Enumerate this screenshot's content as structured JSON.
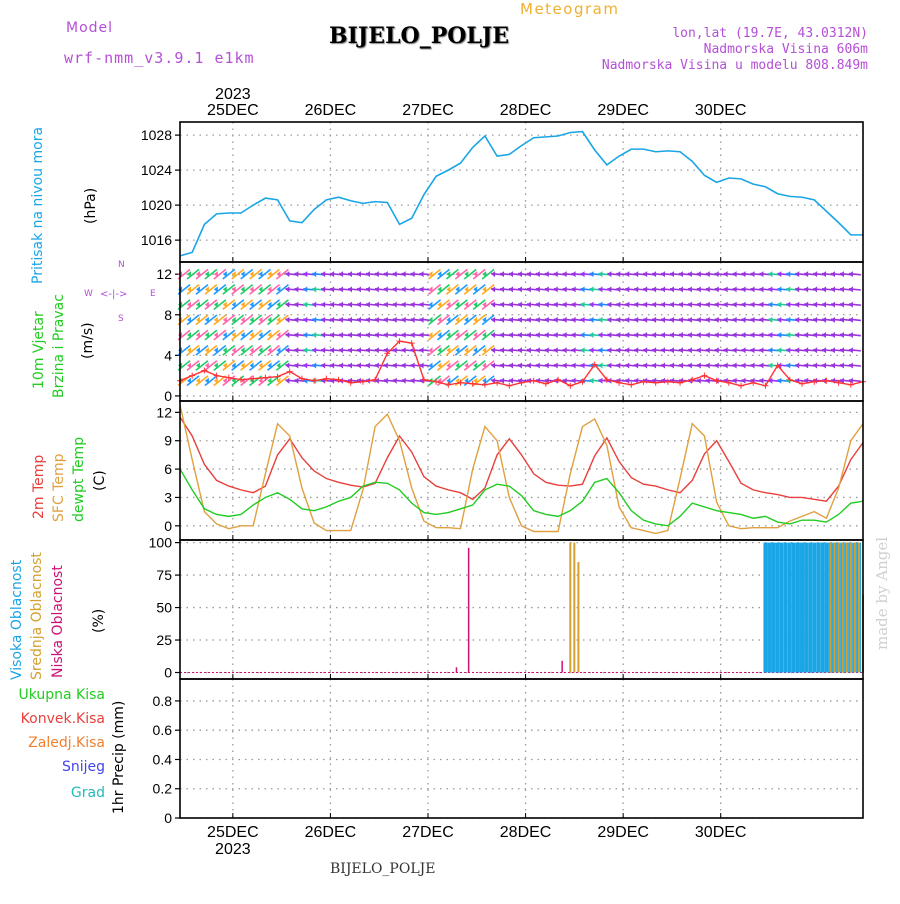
{
  "header": {
    "model_label": "Model",
    "model_name": "wrf-nmm_v3.9.1 e1km",
    "meteogram_label": "Meteogram",
    "station": "BIJELO_POLJE",
    "lonlat": "lon,lat (19.7E, 43.0312N)",
    "elevation": "Nadmorska Visina 606m",
    "model_elevation": "Nadmorska Visina u modelu 808.849m",
    "footer_station": "BIJELO_POLJE",
    "watermark": "made by Angel"
  },
  "colors": {
    "pressure": "#1aa6e6",
    "t2m": "#e8403c",
    "sfc": "#e0a040",
    "dewpt": "#22cc22",
    "wind_speed": "#ff3333",
    "high_cloud": "#1aa6e6",
    "mid_cloud": "#d4a030",
    "low_cloud": "#cc1177",
    "purple": "#b54fd6",
    "orange": "#f0b030"
  },
  "time_axis": {
    "top_year": "2023",
    "bottom_year": "2023",
    "day_labels": [
      "25DEC",
      "26DEC",
      "27DEC",
      "28DEC",
      "29DEC",
      "30DEC"
    ]
  },
  "panel_labels": {
    "pressure": [
      "Pritisak na nivou mora",
      "(hPa)"
    ],
    "wind": [
      "10m Vjetar",
      "Brzina i Pravac",
      "(m/s)"
    ],
    "compass": {
      "n": "N",
      "s": "S",
      "e": "E",
      "w": "W"
    },
    "temp": [
      "2m Temp",
      "SFC Temp",
      "dewpt Temp",
      "(C)"
    ],
    "cloud": [
      "Visoka Oblacnost",
      "Srednja Oblacnost",
      "Niska Oblacnost",
      "(%)"
    ],
    "precip_legend": [
      "Ukupna Kisa",
      "Konvek.Kisa",
      "Zaledj.Kisa",
      "Snijeg",
      "Grad"
    ],
    "precip_axis": "1hr Precip (mm)"
  },
  "chart_data": [
    {
      "type": "line",
      "name": "pressure",
      "ylabel": "(hPa)",
      "ylim": [
        1013.5,
        1029.5
      ],
      "y_ticks": [
        1016,
        1020,
        1024,
        1028
      ],
      "grid": true,
      "x_hours": [
        0,
        3,
        6,
        9,
        12,
        15,
        18,
        21,
        24,
        27,
        30,
        33,
        36,
        39,
        42,
        45,
        48,
        51,
        54,
        57,
        60,
        63,
        66,
        69,
        72,
        75,
        78,
        81,
        84,
        87,
        90,
        93,
        96,
        99,
        102,
        105,
        108,
        111,
        114,
        117,
        120,
        123,
        126,
        129,
        132,
        135,
        138,
        141,
        144,
        147,
        150,
        153,
        156,
        159,
        162,
        165,
        168
      ],
      "values": [
        1014.2,
        1014.6,
        1017.8,
        1019.0,
        1019.1,
        1019.1,
        1020.0,
        1020.8,
        1020.6,
        1018.2,
        1018.0,
        1019.5,
        1020.6,
        1020.9,
        1020.5,
        1020.2,
        1020.4,
        1020.3,
        1017.8,
        1018.5,
        1021.2,
        1023.3,
        1024.0,
        1024.8,
        1026.6,
        1027.9,
        1025.6,
        1025.8,
        1026.8,
        1027.7,
        1027.8,
        1027.9,
        1028.3,
        1028.4,
        1026.3,
        1024.6,
        1025.6,
        1026.4,
        1026.4,
        1026.1,
        1026.2,
        1026.1,
        1025.0,
        1023.4,
        1022.6,
        1023.1,
        1023.0,
        1022.4,
        1022.1,
        1021.3,
        1021.0,
        1020.9,
        1020.6,
        1019.3,
        1018.0,
        1016.6,
        1016.6
      ]
    },
    {
      "type": "line",
      "name": "wind",
      "ylabel": "(m/s)",
      "ylim": [
        -0.5,
        13.2
      ],
      "y_ticks": [
        0,
        4,
        8,
        12
      ],
      "grid": true,
      "x_hours": [
        0,
        3,
        6,
        9,
        12,
        15,
        18,
        21,
        24,
        27,
        30,
        33,
        36,
        39,
        42,
        45,
        48,
        51,
        54,
        57,
        60,
        63,
        66,
        69,
        72,
        75,
        78,
        81,
        84,
        87,
        90,
        93,
        96,
        99,
        102,
        105,
        108,
        111,
        114,
        117,
        120,
        123,
        126,
        129,
        132,
        135,
        138,
        141,
        144,
        147,
        150,
        153,
        156,
        159,
        162,
        165,
        168
      ],
      "values": [
        1.5,
        2.0,
        2.5,
        2.0,
        1.8,
        1.6,
        1.7,
        1.8,
        1.9,
        2.4,
        1.7,
        1.5,
        1.7,
        1.6,
        1.3,
        1.4,
        1.6,
        4.2,
        5.4,
        5.2,
        1.6,
        1.4,
        1.1,
        1.3,
        1.2,
        1.1,
        1.3,
        1.0,
        1.3,
        1.5,
        1.2,
        1.6,
        1.0,
        1.4,
        3.1,
        1.6,
        1.3,
        1.1,
        1.4,
        1.3,
        1.4,
        1.3,
        1.6,
        2.0,
        1.5,
        1.3,
        1.0,
        1.3,
        1.0,
        3.0,
        1.6,
        1.2,
        1.4,
        1.5,
        1.3,
        1.1,
        1.4
      ]
    },
    {
      "type": "line",
      "name": "temperature",
      "ylabel": "(C)",
      "ylim": [
        -1.5,
        13.2
      ],
      "y_ticks": [
        0,
        3,
        6,
        9,
        12
      ],
      "grid": true,
      "x_hours": [
        0,
        3,
        6,
        9,
        12,
        15,
        18,
        21,
        24,
        27,
        30,
        33,
        36,
        39,
        42,
        45,
        48,
        51,
        54,
        57,
        60,
        63,
        66,
        69,
        72,
        75,
        78,
        81,
        84,
        87,
        90,
        93,
        96,
        99,
        102,
        105,
        108,
        111,
        114,
        117,
        120,
        123,
        126,
        129,
        132,
        135,
        138,
        141,
        144,
        147,
        150,
        153,
        156,
        159,
        162,
        165,
        168
      ],
      "series": [
        {
          "name": "2m Temp",
          "values": [
            11.5,
            9.5,
            6.5,
            4.8,
            4.2,
            3.8,
            3.5,
            4.2,
            7.5,
            9.2,
            7.2,
            5.8,
            5.0,
            4.6,
            4.3,
            4.1,
            4.5,
            7.2,
            9.5,
            7.8,
            5.2,
            4.2,
            3.8,
            3.5,
            2.8,
            4.0,
            7.5,
            9.2,
            7.5,
            5.5,
            4.6,
            4.3,
            4.2,
            4.4,
            7.4,
            9.3,
            6.8,
            5.1,
            4.4,
            4.2,
            3.8,
            3.5,
            4.8,
            7.6,
            9.0,
            6.8,
            4.5,
            3.8,
            3.5,
            3.3,
            3.0,
            3.0,
            2.8,
            2.6,
            4.2,
            7.0,
            8.8
          ]
        },
        {
          "name": "SFC Temp",
          "values": [
            12.8,
            7.0,
            1.5,
            0.2,
            -0.3,
            0.0,
            0.0,
            5.5,
            10.8,
            9.5,
            4.0,
            0.3,
            -0.5,
            -0.5,
            -0.5,
            3.8,
            10.5,
            11.8,
            9.0,
            4.0,
            0.5,
            -0.2,
            -0.2,
            -0.3,
            6.0,
            10.5,
            9.0,
            3.0,
            0.0,
            -0.6,
            -0.6,
            -0.6,
            5.5,
            10.5,
            11.3,
            8.5,
            2.0,
            -0.2,
            -0.5,
            -0.8,
            -0.5,
            5.0,
            10.8,
            9.5,
            2.5,
            0.0,
            -0.3,
            -0.2,
            -0.2,
            -0.2,
            0.5,
            1.0,
            1.5,
            0.8,
            4.0,
            9.0,
            10.8
          ]
        },
        {
          "name": "dewpt Temp",
          "values": [
            6.0,
            3.8,
            1.8,
            1.2,
            1.0,
            1.2,
            2.2,
            3.0,
            3.5,
            2.8,
            1.8,
            1.6,
            2.0,
            2.6,
            3.0,
            4.2,
            4.6,
            4.5,
            3.8,
            2.4,
            1.4,
            1.2,
            1.4,
            1.8,
            2.2,
            3.8,
            4.4,
            4.2,
            3.2,
            1.6,
            1.2,
            1.0,
            1.6,
            2.6,
            4.6,
            5.0,
            3.5,
            1.6,
            0.6,
            0.2,
            0.0,
            1.0,
            2.4,
            2.0,
            1.6,
            1.4,
            1.2,
            0.8,
            1.0,
            0.4,
            0.2,
            0.6,
            0.6,
            0.4,
            1.2,
            2.4,
            2.6
          ]
        }
      ]
    },
    {
      "type": "bar",
      "name": "cloud",
      "ylabel": "(%)",
      "ylim": [
        -5,
        102
      ],
      "y_ticks": [
        0,
        25,
        50,
        75,
        100
      ],
      "grid": true,
      "series": [
        {
          "name": "Visoka Oblacnost",
          "x_hours": [
            144,
            145,
            146,
            147,
            148,
            149,
            150,
            151,
            152,
            153,
            154,
            155,
            156,
            157,
            158,
            159,
            160,
            161,
            162,
            163,
            164,
            165,
            166,
            167
          ],
          "values": [
            100,
            100,
            100,
            100,
            100,
            100,
            100,
            100,
            100,
            100,
            100,
            100,
            100,
            100,
            100,
            100,
            100,
            100,
            100,
            100,
            100,
            100,
            100,
            100
          ]
        },
        {
          "name": "Srednja Oblacnost",
          "x_hours": [
            96,
            97,
            98,
            160,
            161,
            162,
            163,
            164,
            165,
            166,
            167,
            168
          ],
          "values": [
            100,
            100,
            85,
            100,
            100,
            100,
            100,
            100,
            100,
            100,
            100,
            60
          ]
        },
        {
          "name": "Niska Oblacnost",
          "x_hours": [
            68,
            71,
            94
          ],
          "values": [
            4,
            96,
            9
          ]
        }
      ]
    },
    {
      "type": "bar",
      "name": "precip",
      "ylabel": "1hr Precip (mm)",
      "ylim": [
        0,
        0.95
      ],
      "y_ticks": [
        0,
        0.2,
        0.4,
        0.6,
        0.8
      ],
      "grid": true,
      "series": []
    }
  ]
}
